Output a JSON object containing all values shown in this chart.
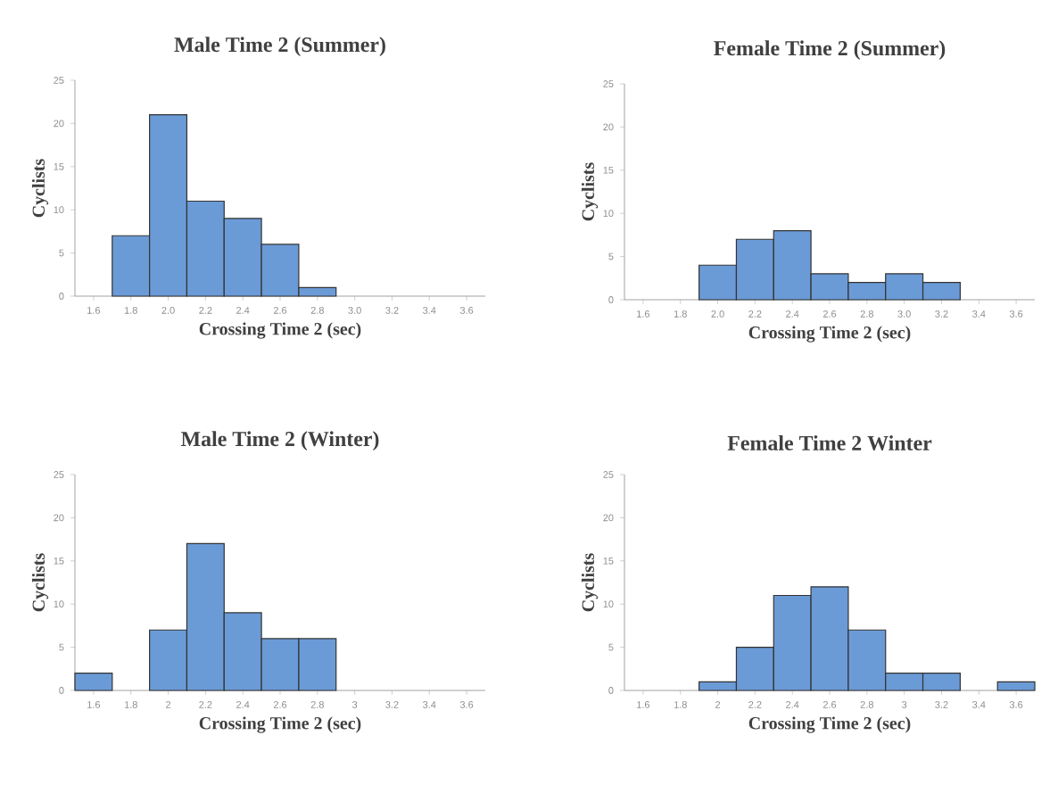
{
  "chart_data": [
    {
      "type": "bar",
      "title": "Male Time 2 (Summer)",
      "xlabel": "Crossing Time 2 (sec)",
      "ylabel": "Cyclists",
      "categories": [
        "1.6",
        "1.8",
        "2.0",
        "2.2",
        "2.4",
        "2.6",
        "2.8",
        "3.0",
        "3.2",
        "3.4",
        "3.6"
      ],
      "values": [
        0,
        7,
        21,
        11,
        9,
        6,
        1,
        0,
        0,
        0,
        0
      ],
      "color": "#6b9bd6",
      "ylim": [
        0,
        25
      ],
      "yticks": [
        0,
        5,
        10,
        15,
        20,
        25
      ]
    },
    {
      "type": "bar",
      "title": "Female Time 2 (Summer)",
      "xlabel": "Crossing Time 2 (sec)",
      "ylabel": "Cyclists",
      "categories": [
        "1.6",
        "1.8",
        "2.0",
        "2.2",
        "2.4",
        "2.6",
        "2.8",
        "3.0",
        "3.2",
        "3.4",
        "3.6"
      ],
      "values": [
        0,
        0,
        4,
        7,
        8,
        3,
        2,
        3,
        2,
        0,
        0
      ],
      "color": "#6b9bd6",
      "ylim": [
        0,
        25
      ],
      "yticks": [
        0,
        5,
        10,
        15,
        20,
        25
      ]
    },
    {
      "type": "bar",
      "title": "Male Time 2 (Winter)",
      "xlabel": "Crossing Time 2 (sec)",
      "ylabel": "Cyclists",
      "categories": [
        "1.6",
        "1.8",
        "2",
        "2.2",
        "2.4",
        "2.6",
        "2.8",
        "3",
        "3.2",
        "3.4",
        "3.6"
      ],
      "values": [
        2,
        0,
        7,
        17,
        9,
        6,
        6,
        0,
        0,
        0,
        0
      ],
      "color": "#6b9bd6",
      "ylim": [
        0,
        25
      ],
      "yticks": [
        0,
        5,
        10,
        15,
        20,
        25
      ]
    },
    {
      "type": "bar",
      "title": "Female Time 2 Winter",
      "xlabel": "Crossing Time 2 (sec)",
      "ylabel": "Cyclists",
      "categories": [
        "1.6",
        "1.8",
        "2",
        "2.2",
        "2.4",
        "2.6",
        "2.8",
        "3",
        "3.2",
        "3.4",
        "3.6"
      ],
      "values": [
        0,
        0,
        1,
        5,
        11,
        12,
        7,
        2,
        2,
        0,
        1
      ],
      "color": "#6b9bd6",
      "ylim": [
        0,
        25
      ],
      "yticks": [
        0,
        5,
        10,
        15,
        20,
        25
      ]
    }
  ]
}
